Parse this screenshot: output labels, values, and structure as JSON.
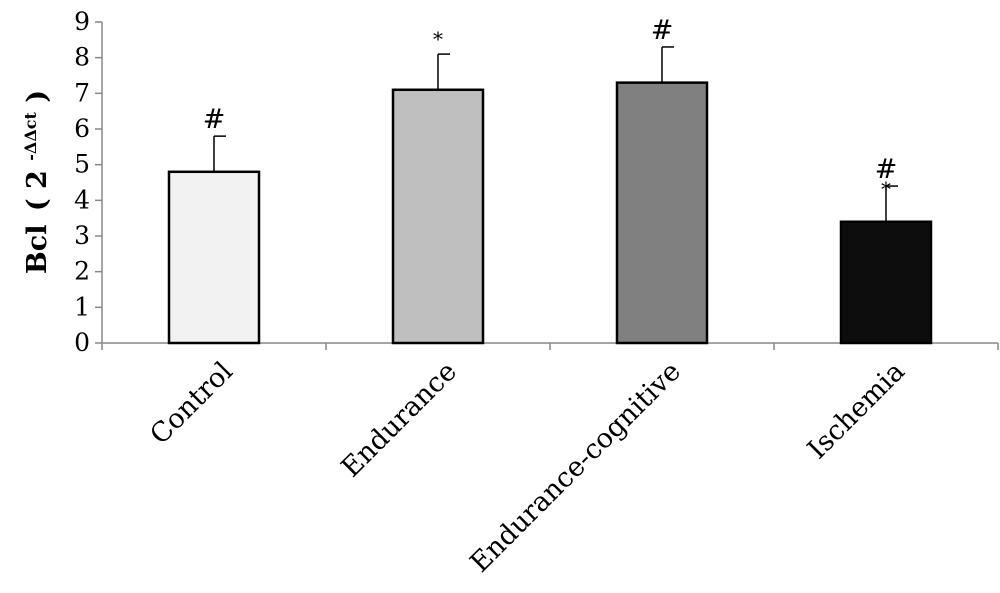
{
  "chart_data": {
    "type": "bar",
    "categories": [
      "Control",
      "Endurance",
      "Endurance-cognitive",
      "Ischemia"
    ],
    "values": [
      4.8,
      7.1,
      7.3,
      3.4
    ],
    "error_upper": [
      5.8,
      8.1,
      8.3,
      4.4
    ],
    "annotations": [
      "#",
      "*",
      "#",
      "#*"
    ],
    "bar_colors": [
      "#f2f2f2",
      "#bfbfbf",
      "#808080",
      "#0d0d0d"
    ],
    "ylabel_main": "Bcl",
    "ylabel_paren_open": "(",
    "ylabel_base": "2",
    "ylabel_sup": "-ΔΔct",
    "ylabel_paren_close": ")",
    "ylim": [
      0,
      9
    ],
    "yticks": [
      "0",
      "1",
      "2",
      "3",
      "4",
      "5",
      "6",
      "7",
      "8",
      "9"
    ],
    "grid": false,
    "legend": "none"
  }
}
